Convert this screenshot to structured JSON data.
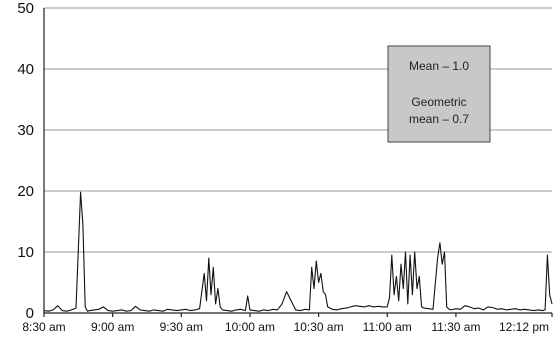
{
  "chart_data": {
    "type": "line",
    "title": "",
    "xlabel": "",
    "ylabel": "",
    "ylim": [
      0,
      50
    ],
    "yticks": [
      0,
      10,
      20,
      30,
      40,
      50
    ],
    "xticks": [
      "8:30 am",
      "9:00 am",
      "9:30 am",
      "10:00 am",
      "10:30 am",
      "11:00 am",
      "11:30 am",
      "12:12 pm"
    ],
    "xticks_minutes": [
      510,
      540,
      570,
      600,
      630,
      660,
      690,
      732
    ],
    "xlim_minutes": [
      510,
      732
    ],
    "grid": "horizontal",
    "annotation": {
      "line1": "Mean – 1.0",
      "line2": "Geometric",
      "line3": "mean – 0.7"
    },
    "series": [
      {
        "values_time": [
          "8:28 am",
          "8:30 am",
          "8:32 am",
          "8:34 am",
          "8:36 am",
          "8:38 am",
          "8:40 am",
          "8:42 am",
          "8:44 am",
          "8:46 am",
          "8:47 am",
          "8:48 am",
          "8:49 am",
          "8:50 am",
          "8:52 am",
          "8:54 am",
          "8:56 am",
          "8:58 am",
          "9:00 am",
          "9:02 am",
          "9:04 am",
          "9:06 am",
          "9:08 am",
          "9:10 am",
          "9:12 am",
          "9:14 am",
          "9:16 am",
          "9:18 am",
          "9:20 am",
          "9:22 am",
          "9:24 am",
          "9:26 am",
          "9:28 am",
          "9:30 am",
          "9:32 am",
          "9:34 am",
          "9:36 am",
          "9:38 am",
          "9:40 am",
          "9:41 am",
          "9:42 am",
          "9:43 am",
          "9:44 am",
          "9:45 am",
          "9:46 am",
          "9:47 am",
          "9:48 am",
          "9:50 am",
          "9:52 am",
          "9:54 am",
          "9:56 am",
          "9:58 am",
          "9:59 am",
          "10:00 am",
          "10:02 am",
          "10:04 am",
          "10:06 am",
          "10:08 am",
          "10:10 am",
          "10:12 am",
          "10:14 am",
          "10:16 am",
          "10:18 am",
          "10:20 am",
          "10:22 am",
          "10:24 am",
          "10:26 am",
          "10:27 am",
          "10:28 am",
          "10:29 am",
          "10:30 am",
          "10:31 am",
          "10:32 am",
          "10:33 am",
          "10:34 am",
          "10:36 am",
          "10:38 am",
          "10:40 am",
          "10:42 am",
          "10:44 am",
          "10:46 am",
          "10:48 am",
          "10:50 am",
          "10:52 am",
          "10:54 am",
          "10:56 am",
          "10:58 am",
          "11:00 am",
          "11:01 am",
          "11:02 am",
          "11:03 am",
          "11:04 am",
          "11:05 am",
          "11:06 am",
          "11:07 am",
          "11:08 am",
          "11:09 am",
          "11:10 am",
          "11:11 am",
          "11:12 am",
          "11:13 am",
          "11:14 am",
          "11:15 am",
          "11:16 am",
          "11:18 am",
          "11:20 am",
          "11:22 am",
          "11:23 am",
          "11:24 am",
          "11:25 am",
          "11:26 am",
          "11:27 am",
          "11:28 am",
          "11:30 am",
          "11:32 am",
          "11:34 am",
          "11:36 am",
          "11:38 am",
          "11:40 am",
          "11:42 am",
          "11:44 am",
          "11:46 am",
          "11:48 am",
          "11:50 am",
          "11:52 am",
          "11:54 am",
          "11:56 am",
          "11:58 am",
          "12:00 pm",
          "12:02 pm",
          "12:04 pm",
          "12:06 pm",
          "12:08 pm",
          "12:09 pm",
          "12:10 pm",
          "12:11 pm",
          "12:12 pm"
        ],
        "values": [
          0.5,
          0.4,
          0.3,
          0.5,
          1.2,
          0.4,
          0.3,
          0.5,
          0.8,
          19.8,
          14.5,
          1.0,
          0.3,
          0.4,
          0.5,
          0.6,
          1.0,
          0.4,
          0.3,
          0.4,
          0.5,
          0.3,
          0.4,
          1.1,
          0.5,
          0.4,
          0.3,
          0.5,
          0.4,
          0.3,
          0.6,
          0.5,
          0.4,
          0.5,
          0.6,
          0.4,
          0.5,
          0.7,
          6.5,
          2.0,
          9.0,
          3.0,
          7.5,
          1.5,
          4.0,
          1.0,
          0.5,
          0.4,
          0.3,
          0.5,
          0.6,
          0.4,
          2.8,
          0.5,
          0.4,
          0.3,
          0.5,
          0.4,
          0.6,
          0.5,
          1.5,
          3.5,
          2.0,
          0.5,
          0.4,
          0.6,
          0.5,
          7.5,
          4.0,
          8.5,
          5.0,
          6.5,
          3.5,
          3.0,
          1.0,
          0.6,
          0.5,
          0.7,
          0.8,
          1.0,
          1.2,
          1.1,
          1.0,
          1.2,
          1.0,
          1.1,
          1.0,
          1.0,
          2.5,
          9.5,
          3.0,
          6.0,
          2.0,
          8.0,
          4.0,
          10.0,
          1.5,
          9.5,
          3.0,
          10.0,
          4.0,
          6.0,
          1.0,
          0.8,
          0.7,
          0.6,
          9.0,
          11.5,
          8.0,
          10.0,
          1.0,
          0.6,
          0.5,
          0.7,
          0.6,
          1.2,
          1.0,
          0.7,
          0.8,
          0.5,
          1.0,
          0.9,
          0.6,
          0.7,
          0.5,
          0.6,
          0.7,
          0.5,
          0.6,
          0.5,
          0.4,
          0.5,
          0.4,
          0.5,
          9.5,
          3.0,
          1.5,
          1.0,
          0.5
        ]
      }
    ]
  }
}
